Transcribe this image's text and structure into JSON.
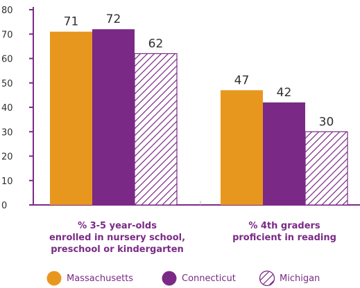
{
  "chart_data": {
    "type": "bar",
    "ylim": [
      0,
      80
    ],
    "yticks": [
      "0",
      "10",
      "20",
      "30",
      "40",
      "50",
      "60",
      "70",
      "80"
    ],
    "groups": [
      {
        "label_lines": [
          "% 3-5 year-olds",
          "enrolled in nursery school,",
          "preschool or kindergarten"
        ],
        "values": [
          71,
          72,
          62
        ],
        "value_labels": [
          "71",
          "72",
          "62"
        ]
      },
      {
        "label_lines": [
          "% 4th graders",
          "proficient in reading"
        ],
        "values": [
          47,
          42,
          30
        ],
        "value_labels": [
          "47",
          "42",
          "30"
        ]
      }
    ],
    "series": [
      {
        "name": "Massachusetts",
        "color": "#e8971e",
        "fill": "solid"
      },
      {
        "name": "Connecticut",
        "color": "#7a2a86",
        "fill": "solid"
      },
      {
        "name": "Michigan",
        "color": "#7a2a86",
        "fill": "hatched"
      }
    ],
    "axis_color": "#7a2a86",
    "grid": false,
    "legend": "bottom"
  }
}
